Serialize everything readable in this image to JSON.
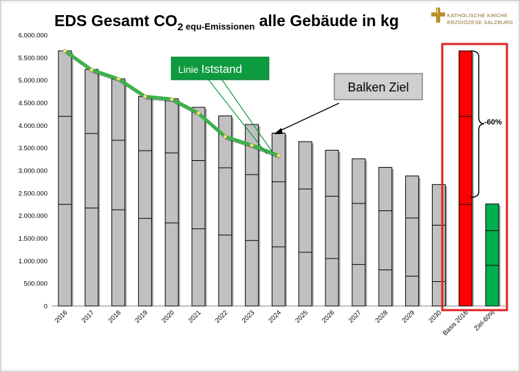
{
  "title": {
    "prefix": "EDS Gesamt CO",
    "subscript_2": "2",
    "sub": " equ-Emissionen",
    "suffix": " alle Gebäude in kg"
  },
  "logo": {
    "line1": "KATHOLISCHE KIRCHE",
    "line2": "ERZDIÖZESE SALZBURG"
  },
  "callouts": {
    "line_label_small": "Linie",
    "line_label_big": "Iststand",
    "bar_label": "Balken Ziel",
    "reduction": "-60%"
  },
  "colors": {
    "bar_gray": "#c0c0c0",
    "bar_red": "#ff0000",
    "bar_green": "#00b050",
    "line_green": "#3bb34a",
    "marker": "#f2e28a",
    "box_red": "#e02020",
    "callout_green": "#0e9a3e",
    "callout_gray": "#d0d0d0"
  },
  "chart_data": {
    "type": "bar",
    "ylim": [
      0,
      6000000
    ],
    "yticks": [
      "0",
      "500.000",
      "1.000.000",
      "1.500.000",
      "2.000.000",
      "2.500.000",
      "3.000.000",
      "3.500.000",
      "4.000.000",
      "4.500.000",
      "5.000.000",
      "5.500.000",
      "6.000.000"
    ],
    "categories": [
      "2016",
      "2017",
      "2018",
      "2019",
      "2020",
      "2021",
      "2022",
      "2023",
      "2024",
      "2025",
      "2026",
      "2027",
      "2028",
      "2029",
      "2030",
      "Basis 2016",
      "Ziel-60%"
    ],
    "bar_totals": [
      5650000,
      5240000,
      5030000,
      4640000,
      4590000,
      4400000,
      4210000,
      4020000,
      3830000,
      3640000,
      3450000,
      3260000,
      3070000,
      2880000,
      2690000,
      5650000,
      2260000
    ],
    "bar_dividers": [
      [
        2250000,
        4200000
      ],
      [
        2170000,
        3820000
      ],
      [
        2130000,
        3670000
      ],
      [
        1940000,
        3440000
      ],
      [
        1840000,
        3390000
      ],
      [
        1710000,
        3220000
      ],
      [
        1570000,
        3060000
      ],
      [
        1450000,
        2910000
      ],
      [
        1310000,
        2750000
      ],
      [
        1190000,
        2590000
      ],
      [
        1050000,
        2430000
      ],
      [
        920000,
        2270000
      ],
      [
        800000,
        2110000
      ],
      [
        660000,
        1950000
      ],
      [
        540000,
        1790000
      ],
      [
        2250000,
        4200000
      ],
      [
        900000,
        1670000
      ]
    ],
    "bar_colors": [
      "gray",
      "gray",
      "gray",
      "gray",
      "gray",
      "gray",
      "gray",
      "gray",
      "gray",
      "gray",
      "gray",
      "gray",
      "gray",
      "gray",
      "gray",
      "red",
      "green"
    ],
    "line": {
      "name": "Iststand",
      "categories": [
        "2016",
        "2017",
        "2018",
        "2019",
        "2020",
        "2021",
        "2022",
        "2023",
        "2024"
      ],
      "values": [
        5650000,
        5230000,
        5030000,
        4640000,
        4580000,
        4270000,
        3750000,
        3560000,
        3330000
      ]
    }
  }
}
